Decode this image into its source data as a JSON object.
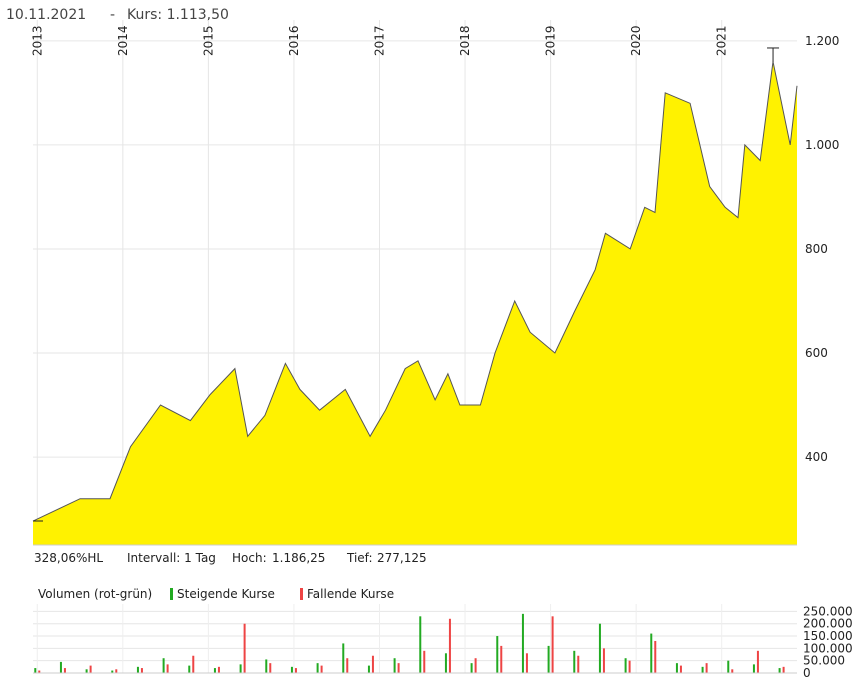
{
  "chart_data": {
    "type": "area",
    "title": "10.11.2021",
    "subtitle": "Kurs: 1.113,50",
    "color": "#fff200",
    "line_color": "#555555",
    "grid": true,
    "x": [
      2012.95,
      2013.5,
      2013.85,
      2014.09,
      2014.44,
      2014.79,
      2015.02,
      2015.31,
      2015.46,
      2015.66,
      2015.9,
      2016.07,
      2016.3,
      2016.6,
      2016.89,
      2017.07,
      2017.3,
      2017.45,
      2017.65,
      2017.8,
      2017.94,
      2018.18,
      2018.35,
      2018.58,
      2018.76,
      2019.05,
      2019.28,
      2019.52,
      2019.64,
      2019.93,
      2020.1,
      2020.22,
      2020.34,
      2020.63,
      2020.86,
      2021.04,
      2021.19,
      2021.27,
      2021.45,
      2021.6,
      2021.8,
      2021.88
    ],
    "values": [
      277,
      320,
      320,
      420,
      500,
      470,
      520,
      570,
      440,
      480,
      580,
      530,
      490,
      530,
      440,
      490,
      570,
      585,
      510,
      560,
      500,
      500,
      600,
      700,
      640,
      600,
      680,
      760,
      830,
      800,
      880,
      870,
      1100,
      1080,
      920,
      880,
      860,
      1000,
      970,
      1160,
      1000,
      1113.5
    ],
    "xlim": [
      2012.95,
      2021.88
    ],
    "xticks": [
      2013,
      2014,
      2015,
      2016,
      2017,
      2018,
      2019,
      2020,
      2021
    ],
    "ylim": [
      231,
      1240
    ],
    "yticks": [
      {
        "value": 400,
        "label": "400"
      },
      {
        "value": 600,
        "label": "600"
      },
      {
        "value": 800,
        "label": "800"
      },
      {
        "value": 1000,
        "label": "1.000"
      },
      {
        "value": 1200,
        "label": "1.200"
      }
    ],
    "stats": {
      "performance": "328,06%HL",
      "interval": "Intervall: 1 Tag",
      "high_label": "Hoch:",
      "high": 1186.25,
      "high_text": "1.186,25",
      "high_x": 2021.6,
      "low_label": "Tief:",
      "low": 277.125,
      "low_text": "277,125",
      "low_x": 2012.95
    },
    "volume": {
      "title": "Volumen (rot-grün)",
      "x": [
        2013.0,
        2013.3,
        2013.6,
        2013.9,
        2014.2,
        2014.5,
        2014.8,
        2015.1,
        2015.4,
        2015.7,
        2016.0,
        2016.3,
        2016.6,
        2016.9,
        2017.2,
        2017.5,
        2017.8,
        2018.1,
        2018.4,
        2018.7,
        2019.0,
        2019.3,
        2019.6,
        2019.9,
        2020.2,
        2020.5,
        2020.8,
        2021.1,
        2021.4,
        2021.7
      ],
      "ylim": [
        0,
        280000
      ],
      "yticks": [
        {
          "value": 0,
          "label": "0"
        },
        {
          "value": 50000,
          "label": "50.000"
        },
        {
          "value": 100000,
          "label": "100.000"
        },
        {
          "value": 150000,
          "label": "150.000"
        },
        {
          "value": 200000,
          "label": "200.000"
        },
        {
          "value": 250000,
          "label": "250.000"
        }
      ],
      "series": [
        {
          "name": "Steigende Kurse",
          "color": "#22aa22",
          "values": [
            20000,
            45000,
            15000,
            10000,
            25000,
            60000,
            30000,
            20000,
            35000,
            55000,
            25000,
            40000,
            120000,
            30000,
            60000,
            230000,
            80000,
            40000,
            150000,
            240000,
            110000,
            90000,
            200000,
            60000,
            160000,
            40000,
            25000,
            50000,
            35000,
            20000
          ]
        },
        {
          "name": "Fallende Kurse",
          "color": "#ee4444",
          "values": [
            10000,
            20000,
            30000,
            15000,
            20000,
            35000,
            70000,
            25000,
            200000,
            40000,
            20000,
            30000,
            60000,
            70000,
            40000,
            90000,
            220000,
            60000,
            110000,
            80000,
            230000,
            70000,
            100000,
            50000,
            130000,
            30000,
            40000,
            15000,
            90000,
            25000
          ]
        }
      ]
    }
  }
}
